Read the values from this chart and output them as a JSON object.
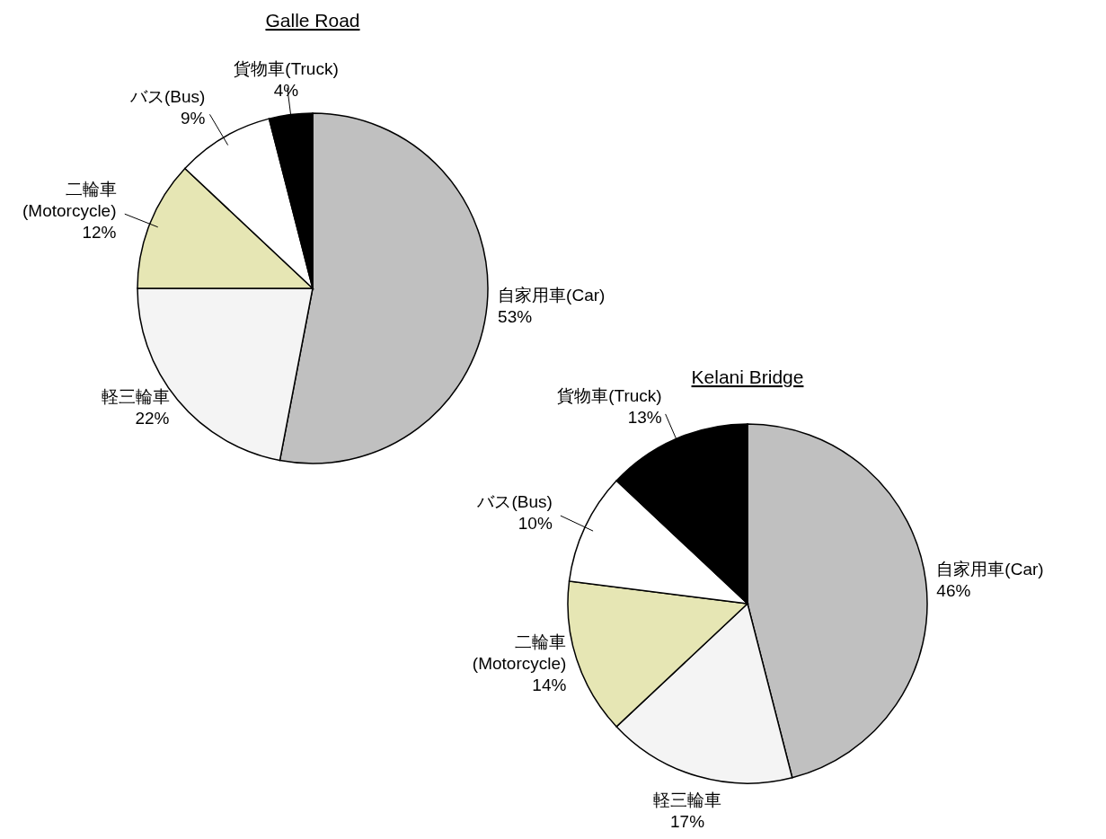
{
  "chart_data": [
    {
      "type": "pie",
      "title": "Galle Road",
      "categories": [
        "自家用車(Car)",
        "軽三輪車",
        "二輪車\n(Motorcycle)",
        "バス(Bus)",
        "貨物車(Truck)"
      ],
      "values": [
        53,
        22,
        12,
        9,
        4
      ],
      "value_labels": [
        "53%",
        "22%",
        "12%",
        "9%",
        "4%"
      ],
      "colors": [
        "#c0c0c0",
        "#f4f4f4",
        "#e6e6b4",
        "#ffffff",
        "#000000"
      ]
    },
    {
      "type": "pie",
      "title": "Kelani Bridge",
      "categories": [
        "自家用車(Car)",
        "軽三輪車",
        "二輪車\n(Motorcycle)",
        "バス(Bus)",
        "貨物車(Truck)"
      ],
      "values": [
        46,
        17,
        14,
        10,
        13
      ],
      "value_labels": [
        "46%",
        "17%",
        "14%",
        "10%",
        "13%"
      ],
      "colors": [
        "#c0c0c0",
        "#f4f4f4",
        "#e6e6b4",
        "#ffffff",
        "#000000"
      ]
    }
  ]
}
